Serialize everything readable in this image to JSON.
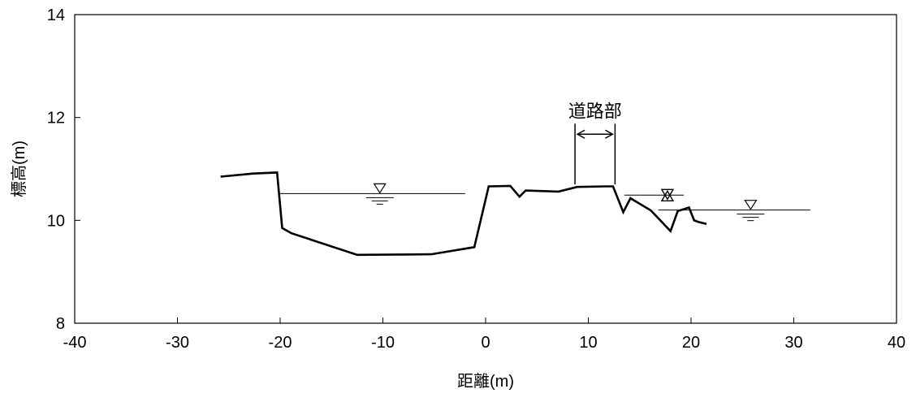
{
  "chart_data": {
    "type": "line",
    "title": "",
    "xlabel": "距離(m)",
    "ylabel": "標高(m)",
    "xlim": [
      -40,
      40
    ],
    "ylim": [
      8,
      14
    ],
    "xticks": [
      -40,
      -30,
      -20,
      -10,
      0,
      10,
      20,
      30,
      40
    ],
    "yticks": [
      8,
      10,
      12,
      14
    ],
    "x_tick_labels": [
      "-40",
      "-30",
      "-20",
      "-10",
      "0",
      "10",
      "20",
      "30",
      "40"
    ],
    "y_tick_labels": [
      "8",
      "10",
      "12",
      "14"
    ],
    "grid": false,
    "legend": "none",
    "series": [
      {
        "style": "thick",
        "x": [
          -25.8,
          -22.6,
          -20.3,
          -19.8,
          -18.9,
          -12.5,
          -5.3,
          -1.1,
          0.3,
          2.4,
          3.3,
          3.9,
          7.1,
          8.9,
          11.6,
          12.4,
          13.4,
          14.1,
          16.1,
          17.0,
          18.0,
          18.7,
          19.8,
          20.3,
          20.7,
          21.5
        ],
        "y": [
          10.85,
          10.91,
          10.93,
          9.85,
          9.75,
          9.33,
          9.34,
          9.48,
          10.66,
          10.67,
          10.46,
          10.58,
          10.56,
          10.65,
          10.66,
          10.66,
          10.16,
          10.43,
          10.19,
          10.0,
          9.79,
          10.18,
          10.25,
          10.0,
          9.97,
          9.93
        ]
      }
    ],
    "water_levels": [
      {
        "x": [
          -20.0,
          -2.0
        ],
        "y": 10.52,
        "symbol": "▽",
        "symbol_x": -10.3
      },
      {
        "x": [
          13.5,
          19.3
        ],
        "y": 10.49,
        "symbol": "※",
        "symbol_x": 17.7
      },
      {
        "x": [
          16.8,
          31.6
        ],
        "y": 10.2,
        "symbol": "▽",
        "symbol_x": 25.8
      }
    ],
    "annotations": [
      {
        "text": "道路部",
        "x_range": [
          8.7,
          12.6
        ],
        "y_bottom": 10.7,
        "y_top": 11.88
      }
    ]
  }
}
